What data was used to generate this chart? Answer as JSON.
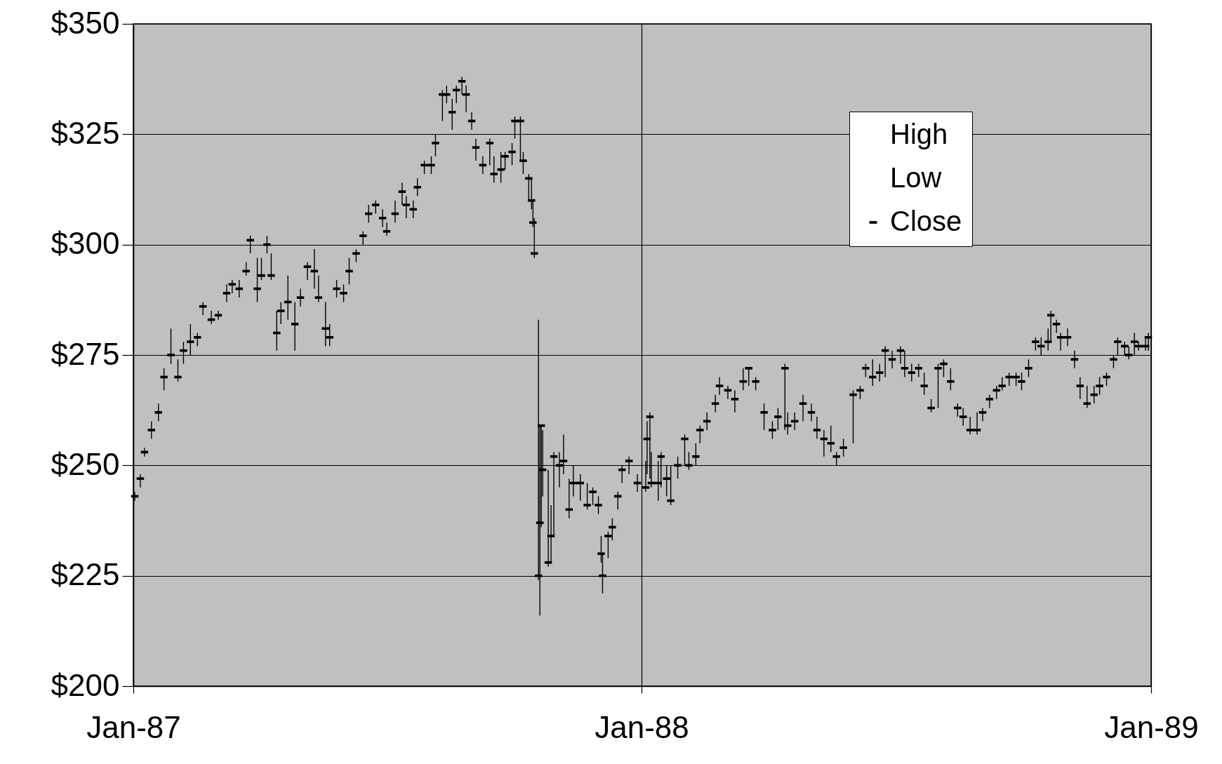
{
  "chart_data": {
    "type": "scatter",
    "x": [
      "1987-01-02",
      "1987-01-06",
      "1987-01-09",
      "1987-01-14",
      "1987-01-19",
      "1987-01-23",
      "1987-01-28",
      "1987-02-02",
      "1987-02-06",
      "1987-02-11",
      "1987-02-16",
      "1987-02-20",
      "1987-02-26",
      "1987-03-03",
      "1987-03-09",
      "1987-03-13",
      "1987-03-18",
      "1987-03-23",
      "1987-03-26",
      "1987-03-31",
      "1987-04-03",
      "1987-04-07",
      "1987-04-10",
      "1987-04-14",
      "1987-04-17",
      "1987-04-22",
      "1987-04-27",
      "1987-05-01",
      "1987-05-06",
      "1987-05-11",
      "1987-05-14",
      "1987-05-19",
      "1987-05-22",
      "1987-05-27",
      "1987-06-01",
      "1987-06-05",
      "1987-06-10",
      "1987-06-15",
      "1987-06-19",
      "1987-06-24",
      "1987-06-29",
      "1987-07-02",
      "1987-07-08",
      "1987-07-13",
      "1987-07-16",
      "1987-07-21",
      "1987-07-24",
      "1987-07-29",
      "1987-08-03",
      "1987-08-06",
      "1987-08-11",
      "1987-08-14",
      "1987-08-18",
      "1987-08-21",
      "1987-08-25",
      "1987-08-28",
      "1987-09-01",
      "1987-09-04",
      "1987-09-09",
      "1987-09-14",
      "1987-09-17",
      "1987-09-22",
      "1987-09-25",
      "1987-09-30",
      "1987-10-02",
      "1987-10-06",
      "1987-10-08",
      "1987-10-12",
      "1987-10-14",
      "1987-10-15",
      "1987-10-16",
      "1987-10-19",
      "1987-10-20",
      "1987-10-21",
      "1987-10-22",
      "1987-10-26",
      "1987-10-28",
      "1987-10-30",
      "1987-11-03",
      "1987-11-06",
      "1987-11-10",
      "1987-11-13",
      "1987-11-18",
      "1987-11-23",
      "1987-11-27",
      "1987-12-01",
      "1987-12-03",
      "1987-12-04",
      "1987-12-08",
      "1987-12-11",
      "1987-12-15",
      "1987-12-18",
      "1987-12-23",
      "1987-12-29",
      "1988-01-04",
      "1988-01-05",
      "1988-01-07",
      "1988-01-08",
      "1988-01-13",
      "1988-01-15",
      "1988-01-19",
      "1988-01-22",
      "1988-01-27",
      "1988-02-01",
      "1988-02-04",
      "1988-02-09",
      "1988-02-12",
      "1988-02-17",
      "1988-02-23",
      "1988-02-26",
      "1988-03-03",
      "1988-03-08",
      "1988-03-14",
      "1988-03-18",
      "1988-03-23",
      "1988-03-29",
      "1988-04-04",
      "1988-04-08",
      "1988-04-13",
      "1988-04-15",
      "1988-04-20",
      "1988-04-26",
      "1988-05-02",
      "1988-05-06",
      "1988-05-11",
      "1988-05-16",
      "1988-05-20",
      "1988-05-25",
      "1988-06-01",
      "1988-06-06",
      "1988-06-10",
      "1988-06-15",
      "1988-06-20",
      "1988-06-24",
      "1988-06-29",
      "1988-07-05",
      "1988-07-08",
      "1988-07-13",
      "1988-07-18",
      "1988-07-22",
      "1988-07-27",
      "1988-08-01",
      "1988-08-05",
      "1988-08-10",
      "1988-08-15",
      "1988-08-19",
      "1988-08-24",
      "1988-08-29",
      "1988-09-02",
      "1988-09-07",
      "1988-09-12",
      "1988-09-16",
      "1988-09-21",
      "1988-09-26",
      "1988-09-30",
      "1988-10-05",
      "1988-10-10",
      "1988-10-14",
      "1988-10-19",
      "1988-10-21",
      "1988-10-25",
      "1988-10-28",
      "1988-11-02",
      "1988-11-07",
      "1988-11-11",
      "1988-11-16",
      "1988-11-21",
      "1988-11-25",
      "1988-11-30",
      "1988-12-05",
      "1988-12-08",
      "1988-12-13",
      "1988-12-16",
      "1988-12-20",
      "1988-12-23",
      "1988-12-28",
      "1988-12-30"
    ],
    "series": [
      {
        "name": "Close",
        "color": "#000000",
        "marker": "square",
        "values": [
          243,
          247,
          253,
          258,
          262,
          270,
          275,
          270,
          276,
          278,
          279,
          286,
          283,
          284,
          289,
          291,
          290,
          294,
          301,
          290,
          293,
          300,
          293,
          280,
          285,
          287,
          282,
          288,
          295,
          294,
          288,
          281,
          279,
          290,
          289,
          294,
          298,
          302,
          307,
          309,
          306,
          303,
          307,
          312,
          309,
          308,
          313,
          318,
          318,
          323,
          334,
          334,
          330,
          335,
          337,
          334,
          328,
          322,
          318,
          323,
          316,
          317,
          320,
          321,
          328,
          328,
          319,
          315,
          310,
          305,
          298,
          225,
          237,
          259,
          249,
          228,
          234,
          252,
          250,
          251,
          240,
          246,
          246,
          241,
          244,
          241,
          230,
          225,
          234,
          236,
          243,
          249,
          251,
          246,
          245,
          256,
          261,
          246,
          246,
          252,
          247,
          242,
          250,
          256,
          250,
          252,
          258,
          260,
          264,
          268,
          267,
          265,
          269,
          272,
          269,
          262,
          258,
          261,
          272,
          259,
          260,
          264,
          262,
          258,
          256,
          255,
          252,
          254,
          266,
          267,
          272,
          270,
          271,
          276,
          274,
          276,
          272,
          271,
          272,
          268,
          263,
          272,
          273,
          269,
          263,
          261,
          258,
          258,
          262,
          265,
          267,
          268,
          270,
          270,
          269,
          272,
          278,
          277,
          278,
          284,
          282,
          279,
          279,
          274,
          268,
          264,
          266,
          268,
          270,
          274,
          278,
          277,
          275,
          278,
          277,
          277,
          279
        ],
        "errors": [
          [
            242,
            244
          ],
          [
            245,
            248
          ],
          [
            252,
            254
          ],
          [
            256,
            260
          ],
          [
            260,
            264
          ],
          [
            267,
            272
          ],
          [
            273,
            281
          ],
          [
            269,
            274
          ],
          [
            273,
            278
          ],
          [
            275,
            282
          ],
          [
            277,
            280
          ],
          [
            284,
            287
          ],
          [
            282,
            285
          ],
          [
            283,
            285
          ],
          [
            287,
            291
          ],
          [
            289,
            292
          ],
          [
            288,
            292
          ],
          [
            293,
            296
          ],
          [
            298,
            302
          ],
          [
            287,
            297
          ],
          [
            292,
            297
          ],
          [
            298,
            302
          ],
          [
            292,
            298
          ],
          [
            276,
            285
          ],
          [
            282,
            287
          ],
          [
            283,
            293
          ],
          [
            276,
            287
          ],
          [
            286,
            290
          ],
          [
            292,
            296
          ],
          [
            290,
            299
          ],
          [
            287,
            293
          ],
          [
            277,
            287
          ],
          [
            277,
            282
          ],
          [
            288,
            292
          ],
          [
            287,
            291
          ],
          [
            291,
            297
          ],
          [
            296,
            299
          ],
          [
            300,
            303
          ],
          [
            305,
            309
          ],
          [
            307,
            310
          ],
          [
            304,
            308
          ],
          [
            302,
            305
          ],
          [
            305,
            310
          ],
          [
            309,
            314
          ],
          [
            306,
            311
          ],
          [
            306,
            310
          ],
          [
            311,
            315
          ],
          [
            316,
            319
          ],
          [
            316,
            320
          ],
          [
            320,
            325
          ],
          [
            328,
            335
          ],
          [
            332,
            336
          ],
          [
            326,
            333
          ],
          [
            332,
            336
          ],
          [
            334,
            338
          ],
          [
            330,
            336
          ],
          [
            326,
            330
          ],
          [
            319,
            324
          ],
          [
            316,
            320
          ],
          [
            318,
            324
          ],
          [
            314,
            320
          ],
          [
            314,
            321
          ],
          [
            317,
            321
          ],
          [
            318,
            323
          ],
          [
            324,
            329
          ],
          [
            319,
            329
          ],
          [
            316,
            321
          ],
          [
            310,
            316
          ],
          [
            308,
            315
          ],
          [
            304,
            310
          ],
          [
            297,
            306
          ],
          [
            224,
            283
          ],
          [
            216,
            259
          ],
          [
            236,
            259
          ],
          [
            243,
            258
          ],
          [
            227,
            249
          ],
          [
            228,
            241
          ],
          [
            234,
            253
          ],
          [
            245,
            253
          ],
          [
            248,
            257
          ],
          [
            238,
            247
          ],
          [
            243,
            250
          ],
          [
            242,
            248
          ],
          [
            240,
            246
          ],
          [
            241,
            245
          ],
          [
            239,
            243
          ],
          [
            228,
            234
          ],
          [
            221,
            230
          ],
          [
            229,
            235
          ],
          [
            233,
            238
          ],
          [
            240,
            244
          ],
          [
            246,
            250
          ],
          [
            248,
            252
          ],
          [
            244,
            248
          ],
          [
            244,
            251
          ],
          [
            248,
            260
          ],
          [
            247,
            262
          ],
          [
            245,
            253
          ],
          [
            242,
            251
          ],
          [
            245,
            253
          ],
          [
            243,
            250
          ],
          [
            241,
            250
          ],
          [
            247,
            252
          ],
          [
            250,
            257
          ],
          [
            249,
            253
          ],
          [
            250,
            255
          ],
          [
            255,
            259
          ],
          [
            258,
            262
          ],
          [
            262,
            266
          ],
          [
            266,
            270
          ],
          [
            265,
            268
          ],
          [
            262,
            267
          ],
          [
            267,
            272
          ],
          [
            268,
            272
          ],
          [
            267,
            270
          ],
          [
            258,
            264
          ],
          [
            256,
            260
          ],
          [
            258,
            263
          ],
          [
            258,
            273
          ],
          [
            257,
            262
          ],
          [
            258,
            262
          ],
          [
            260,
            266
          ],
          [
            260,
            264
          ],
          [
            256,
            261
          ],
          [
            252,
            258
          ],
          [
            253,
            259
          ],
          [
            250,
            253
          ],
          [
            252,
            256
          ],
          [
            255,
            267
          ],
          [
            265,
            268
          ],
          [
            270,
            273
          ],
          [
            268,
            274
          ],
          [
            269,
            273
          ],
          [
            270,
            277
          ],
          [
            272,
            276
          ],
          [
            273,
            277
          ],
          [
            270,
            276
          ],
          [
            269,
            273
          ],
          [
            270,
            273
          ],
          [
            266,
            271
          ],
          [
            262,
            265
          ],
          [
            263,
            273
          ],
          [
            270,
            274
          ],
          [
            267,
            272
          ],
          [
            261,
            264
          ],
          [
            259,
            263
          ],
          [
            257,
            261
          ],
          [
            257,
            262
          ],
          [
            260,
            263
          ],
          [
            263,
            266
          ],
          [
            265,
            268
          ],
          [
            267,
            270
          ],
          [
            268,
            271
          ],
          [
            268,
            271
          ],
          [
            267,
            271
          ],
          [
            270,
            274
          ],
          [
            276,
            279
          ],
          [
            275,
            279
          ],
          [
            276,
            281
          ],
          [
            278,
            285
          ],
          [
            280,
            283
          ],
          [
            276,
            280
          ],
          [
            277,
            281
          ],
          [
            272,
            276
          ],
          [
            265,
            270
          ],
          [
            263,
            268
          ],
          [
            264,
            268
          ],
          [
            266,
            270
          ],
          [
            268,
            271
          ],
          [
            272,
            275
          ],
          [
            275,
            279
          ],
          [
            275,
            278
          ],
          [
            274,
            277
          ],
          [
            275,
            280
          ],
          [
            276,
            278
          ],
          [
            276,
            279
          ],
          [
            276,
            280
          ]
        ]
      }
    ],
    "annotations": [
      "High",
      "Low"
    ],
    "xlim": [
      "1987-01-01",
      "1989-01-01"
    ],
    "xticks": [
      {
        "value": "1987-01-01",
        "label": "Jan-87"
      },
      {
        "value": "1988-01-01",
        "label": "Jan-88"
      },
      {
        "value": "1989-01-01",
        "label": "Jan-89"
      }
    ],
    "ylim": [
      200,
      350
    ],
    "yticks": [
      {
        "value": 200,
        "label": "$200"
      },
      {
        "value": 225,
        "label": "$225"
      },
      {
        "value": 250,
        "label": "$250"
      },
      {
        "value": 275,
        "label": "$275"
      },
      {
        "value": 300,
        "label": "$300"
      },
      {
        "value": 325,
        "label": "$325"
      },
      {
        "value": 350,
        "label": "$350"
      }
    ],
    "grid": true,
    "legend": "top right"
  }
}
